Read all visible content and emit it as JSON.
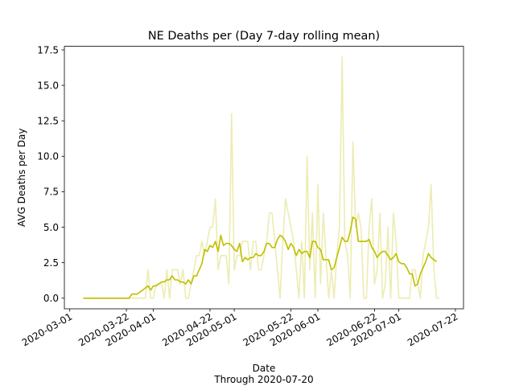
{
  "chart_data": {
    "type": "line",
    "title": "NE Deaths per (Day 7-day rolling mean)",
    "xlabel": "Date",
    "xlabel_sub": "Through 2020-07-20",
    "ylabel": "AVG Deaths per Day",
    "x_start": "2020-03-06",
    "ylim": [
      -0.75,
      17.75
    ],
    "xlim": [
      "2020-02-28",
      "2020-07-25"
    ],
    "yticks": [
      0.0,
      2.5,
      5.0,
      7.5,
      10.0,
      12.5,
      15.0,
      17.5
    ],
    "ytick_labels": [
      "0.0",
      "2.5",
      "5.0",
      "7.5",
      "10.0",
      "12.5",
      "15.0",
      "17.5"
    ],
    "xticks": [
      "2020-03-01",
      "2020-03-22",
      "2020-04-01",
      "2020-04-22",
      "2020-05-01",
      "2020-05-22",
      "2020-06-01",
      "2020-06-22",
      "2020-07-01",
      "2020-07-22"
    ],
    "xtick_labels": [
      "2020-03-01",
      "2020-03-22",
      "2020-04-01",
      "2020-04-22",
      "2020-05-01",
      "2020-05-22",
      "2020-06-01",
      "2020-06-22",
      "2020-07-01",
      "2020-07-22"
    ],
    "grid": false,
    "legend": false,
    "series": [
      {
        "color": "#bfbf00",
        "alpha": 0.3,
        "values": [
          0,
          0,
          0,
          0,
          0,
          0,
          0,
          0,
          0,
          0,
          0,
          0,
          0,
          0,
          0,
          0,
          0,
          0,
          0,
          0,
          0,
          0,
          0,
          0,
          2,
          0,
          0,
          1,
          1,
          1,
          0,
          2,
          0,
          2,
          2,
          2,
          1,
          2,
          0,
          0,
          1,
          2,
          3,
          3,
          4,
          3,
          4,
          5,
          5,
          7,
          2,
          3,
          3,
          3,
          1,
          13,
          2,
          3,
          3,
          4,
          4,
          4,
          2,
          4,
          4,
          2,
          2,
          3,
          4,
          6,
          6,
          4,
          2,
          0,
          4,
          7,
          6,
          5,
          4,
          2,
          0,
          4,
          0,
          10,
          2,
          6,
          0,
          8,
          1,
          6,
          3,
          0,
          2,
          0,
          3,
          5,
          17,
          4,
          3,
          0,
          11,
          5,
          6,
          5,
          0,
          0,
          5,
          7,
          1,
          2,
          6,
          0,
          1,
          5,
          0,
          6,
          4,
          0,
          0,
          0,
          0,
          0,
          2,
          2,
          1,
          0,
          3,
          4,
          5,
          8,
          2,
          0,
          0
        ]
      },
      {
        "color": "#bfbf00",
        "alpha": 1.0,
        "values": [
          0,
          0,
          0,
          0,
          0,
          0,
          0,
          0,
          0,
          0,
          0,
          0,
          0,
          0,
          0,
          0,
          0,
          0,
          0.29,
          0.29,
          0.29,
          0.43,
          0.57,
          0.71,
          0.86,
          0.57,
          0.86,
          0.86,
          1.0,
          1.14,
          1.14,
          1.29,
          1.29,
          1.57,
          1.29,
          1.29,
          1.14,
          1.14,
          1.0,
          1.29,
          1.0,
          1.57,
          1.57,
          2.0,
          2.43,
          3.43,
          3.29,
          3.71,
          3.57,
          4.0,
          3.29,
          4.43,
          3.71,
          3.86,
          3.86,
          3.71,
          3.43,
          3.29,
          3.86,
          2.57,
          2.86,
          2.71,
          2.86,
          2.86,
          3.14,
          3.0,
          3.0,
          3.29,
          3.86,
          3.86,
          3.57,
          3.57,
          4.14,
          4.43,
          4.29,
          4.0,
          3.43,
          3.86,
          3.57,
          3.0,
          3.43,
          3.14,
          3.29,
          3.29,
          2.86,
          4.0,
          4.0,
          3.57,
          3.43,
          2.71,
          2.71,
          2.71,
          2.0,
          2.14,
          2.86,
          3.57,
          4.29,
          4.0,
          4.0,
          4.71,
          5.71,
          5.57,
          4.0,
          4.0,
          4.0,
          4.0,
          4.14,
          3.57,
          3.29,
          2.86,
          3.14,
          3.29,
          3.29,
          3.0,
          2.71,
          2.86,
          3.14,
          2.57,
          2.43,
          2.43,
          2.14,
          1.71,
          1.71,
          0.86,
          1.0,
          1.71,
          2.14,
          2.57,
          3.14,
          2.86,
          2.71,
          2.57
        ]
      }
    ]
  }
}
